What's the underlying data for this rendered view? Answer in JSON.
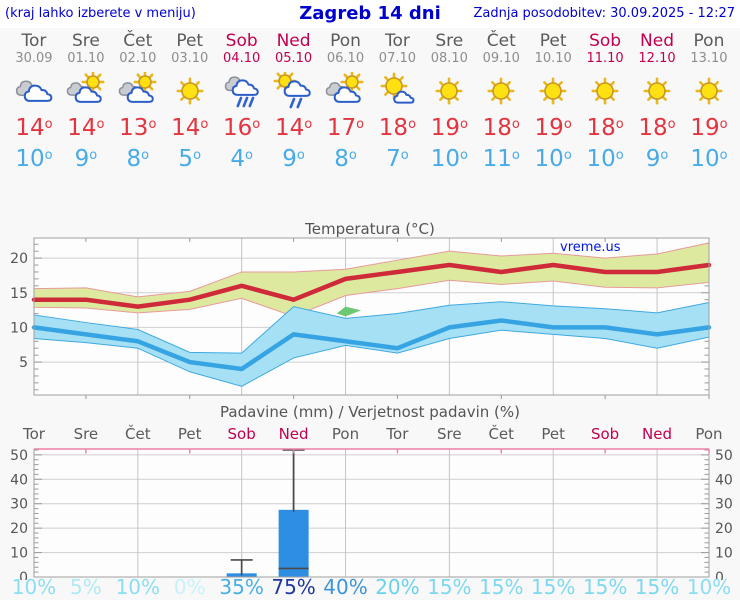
{
  "header": {
    "left_note": "(kraj lahko izberete v meniju)",
    "title": "Zagreb 14 dni",
    "updated": "Zadnja posodobitev: 30.09.2025 - 12:27"
  },
  "degree_symbol": "o",
  "strip": {
    "days": [
      {
        "name": "Tor",
        "date": "30.09",
        "weekend": false,
        "icon": "cloudy",
        "high": 14,
        "low": 10
      },
      {
        "name": "Sre",
        "date": "01.10",
        "weekend": false,
        "icon": "partly-cloudy",
        "high": 14,
        "low": 9
      },
      {
        "name": "Čet",
        "date": "02.10",
        "weekend": false,
        "icon": "partly-cloudy",
        "high": 13,
        "low": 8
      },
      {
        "name": "Pet",
        "date": "03.10",
        "weekend": false,
        "icon": "sunny",
        "high": 14,
        "low": 5
      },
      {
        "name": "Sob",
        "date": "04.10",
        "weekend": true,
        "icon": "rain",
        "high": 16,
        "low": 4
      },
      {
        "name": "Ned",
        "date": "05.10",
        "weekend": true,
        "icon": "sun-rain",
        "high": 14,
        "low": 9
      },
      {
        "name": "Pon",
        "date": "06.10",
        "weekend": false,
        "icon": "partly-cloudy",
        "high": 17,
        "low": 8
      },
      {
        "name": "Tor",
        "date": "07.10",
        "weekend": false,
        "icon": "mostly-sunny",
        "high": 18,
        "low": 7
      },
      {
        "name": "Sre",
        "date": "08.10",
        "weekend": false,
        "icon": "sunny",
        "high": 19,
        "low": 10
      },
      {
        "name": "Čet",
        "date": "09.10",
        "weekend": false,
        "icon": "sunny",
        "high": 18,
        "low": 11
      },
      {
        "name": "Pet",
        "date": "10.10",
        "weekend": false,
        "icon": "sunny",
        "high": 19,
        "low": 10
      },
      {
        "name": "Sob",
        "date": "11.10",
        "weekend": true,
        "icon": "sunny",
        "high": 18,
        "low": 10
      },
      {
        "name": "Ned",
        "date": "12.10",
        "weekend": true,
        "icon": "sunny",
        "high": 18,
        "low": 9
      },
      {
        "name": "Pon",
        "date": "13.10",
        "weekend": false,
        "icon": "sunny",
        "high": 19,
        "low": 10
      }
    ]
  },
  "chart_data": [
    {
      "type": "line",
      "title": "Temperatura (°C)",
      "watermark": "vreme.us",
      "ylim": [
        0.25,
        22.9
      ],
      "yticks": [
        5,
        10,
        15,
        20
      ],
      "minor_step": 1,
      "grid_days": [
        0,
        2,
        4,
        6,
        8,
        10,
        12
      ],
      "tick_days": [
        1,
        3,
        5,
        7,
        9,
        11,
        13
      ],
      "series": [
        {
          "name": "max temperature",
          "color": "#cf2a39",
          "width": 4.5,
          "values": [
            14,
            14,
            13,
            14,
            16,
            14,
            17,
            18,
            19,
            18,
            19,
            18,
            18,
            19
          ]
        },
        {
          "name": "min temperature",
          "color": "#36a4e3",
          "width": 4.5,
          "values": [
            10,
            9,
            8,
            5,
            4,
            9,
            8,
            7,
            10,
            11,
            10,
            10,
            9,
            10
          ]
        }
      ],
      "bands": [
        {
          "name": "max-range",
          "fill": "#dde99f",
          "edge": "#e89a9a",
          "upper": [
            15.6,
            15.7,
            14.4,
            15.2,
            18.0,
            18.0,
            18.4,
            19.7,
            21.0,
            20.3,
            20.7,
            20.0,
            20.6,
            22.2
          ],
          "lower": [
            12.9,
            12.8,
            12.1,
            12.6,
            14.2,
            11.6,
            14.6,
            15.6,
            16.8,
            16.2,
            16.7,
            15.8,
            15.7,
            16.5
          ]
        },
        {
          "name": "min-range",
          "fill": "#a6e0f4",
          "edge": "#3fa9e0",
          "upper": [
            11.8,
            10.7,
            9.7,
            6.4,
            6.3,
            13.0,
            11.3,
            12.0,
            13.2,
            13.7,
            13.1,
            12.7,
            12.1,
            13.6
          ],
          "lower": [
            8.4,
            7.8,
            7.0,
            3.6,
            1.5,
            5.6,
            7.4,
            6.3,
            8.4,
            9.6,
            9.0,
            8.4,
            7.0,
            8.6
          ]
        }
      ],
      "overlap": {
        "fill": "#6cc873",
        "points": [
          [
            5.83,
            12.0
          ],
          [
            6,
            13.0
          ],
          [
            6.3,
            12.45
          ],
          [
            6,
            11.6
          ]
        ]
      }
    },
    {
      "type": "bar",
      "title": "Padavine (mm) / Verjetnost padavin (%)",
      "categories": [
        "Tor",
        "Sre",
        "Čet",
        "Pet",
        "Sob",
        "Ned",
        "Pon",
        "Tor",
        "Sre",
        "Čet",
        "Pet",
        "Sob",
        "Ned",
        "Pon"
      ],
      "weekend_flags": [
        false,
        false,
        false,
        false,
        true,
        true,
        false,
        false,
        false,
        false,
        false,
        true,
        true,
        false
      ],
      "values": [
        0,
        0,
        0,
        0,
        1.5,
        27.5,
        0,
        0,
        0,
        0,
        0,
        0,
        0,
        0
      ],
      "whisker_low": [
        null,
        null,
        null,
        null,
        0,
        3.5,
        null,
        null,
        null,
        null,
        null,
        null,
        null,
        null
      ],
      "whisker_high": [
        null,
        null,
        null,
        null,
        7,
        52,
        null,
        null,
        null,
        null,
        null,
        null,
        null,
        null
      ],
      "probabilities": [
        {
          "label": "10%",
          "color": "#8adef2"
        },
        {
          "label": "5%",
          "color": "#aeeaf6"
        },
        {
          "label": "10%",
          "color": "#8adef2"
        },
        {
          "label": "0%",
          "color": "#c6f2fa"
        },
        {
          "label": "35%",
          "color": "#49aee4"
        },
        {
          "label": "75%",
          "color": "#20389e"
        },
        {
          "label": "40%",
          "color": "#3e93da"
        },
        {
          "label": "20%",
          "color": "#68d1eb"
        },
        {
          "label": "15%",
          "color": "#7cd9ef"
        },
        {
          "label": "15%",
          "color": "#7cd9ef"
        },
        {
          "label": "15%",
          "color": "#7cd9ef"
        },
        {
          "label": "15%",
          "color": "#7cd9ef"
        },
        {
          "label": "15%",
          "color": "#7cd9ef"
        },
        {
          "label": "10%",
          "color": "#8adef2"
        }
      ],
      "ylim": [
        0,
        52.4
      ],
      "yticks": [
        0,
        10,
        20,
        30,
        40,
        50
      ],
      "minor_step": 2,
      "grid_days": [
        2,
        4,
        6,
        8,
        10,
        12
      ],
      "tick_days": [
        1,
        3,
        5,
        7,
        9,
        11,
        13
      ],
      "bar_color": "#2e8ee2",
      "whisker_color": "#4a4a4a",
      "top_border_color": "#ec7fa4"
    }
  ]
}
